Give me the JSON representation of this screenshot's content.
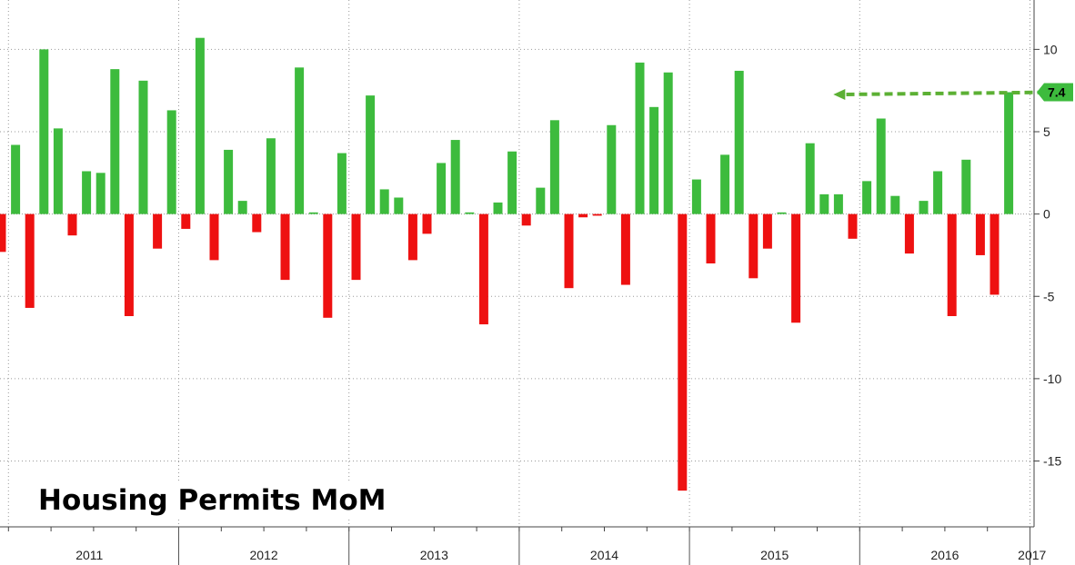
{
  "chart_data": {
    "type": "bar",
    "title": "Housing Permits MoM",
    "x_start": "2010-12",
    "x_end": "2017-03",
    "year_labels": [
      "2011",
      "2012",
      "2013",
      "2014",
      "2015",
      "2016",
      "2017"
    ],
    "ylim": [
      -19,
      13
    ],
    "y_ticks": [
      10,
      5,
      0,
      -5,
      -10,
      -15
    ],
    "y_tick_labels": [
      "10",
      "5",
      "0",
      "-5",
      "-10",
      "-15"
    ],
    "values": [
      -2.3,
      4.2,
      -5.7,
      10.0,
      5.2,
      -1.3,
      2.6,
      2.5,
      8.8,
      -6.2,
      8.1,
      -2.1,
      6.3,
      -0.9,
      10.7,
      -2.8,
      3.9,
      0.8,
      -1.1,
      4.6,
      -4.0,
      8.9,
      0.1,
      -6.3,
      3.7,
      -4.0,
      7.2,
      1.5,
      1.0,
      -2.8,
      -1.2,
      3.1,
      4.5,
      0.1,
      -6.7,
      0.7,
      3.8,
      -0.7,
      1.6,
      5.7,
      -4.5,
      -0.2,
      -0.1,
      5.4,
      -4.3,
      9.2,
      6.5,
      8.6,
      -16.8,
      2.1,
      -3.0,
      3.6,
      8.7,
      -3.9,
      -2.1,
      0.1,
      -6.6,
      4.3,
      1.2,
      1.2,
      -1.5,
      2.0,
      5.8,
      1.1,
      -2.4,
      0.8,
      2.6,
      -6.2,
      3.3,
      -2.5,
      -4.9,
      7.4
    ],
    "positive_color": "#3dbb3d",
    "negative_color": "#ee1111",
    "grid": true,
    "last_value_label": "7.4",
    "annotation": {
      "type": "dashed-arrow",
      "from": "2017-03",
      "to": "2015-10",
      "value": 7.4,
      "color": "#5cb034"
    }
  }
}
